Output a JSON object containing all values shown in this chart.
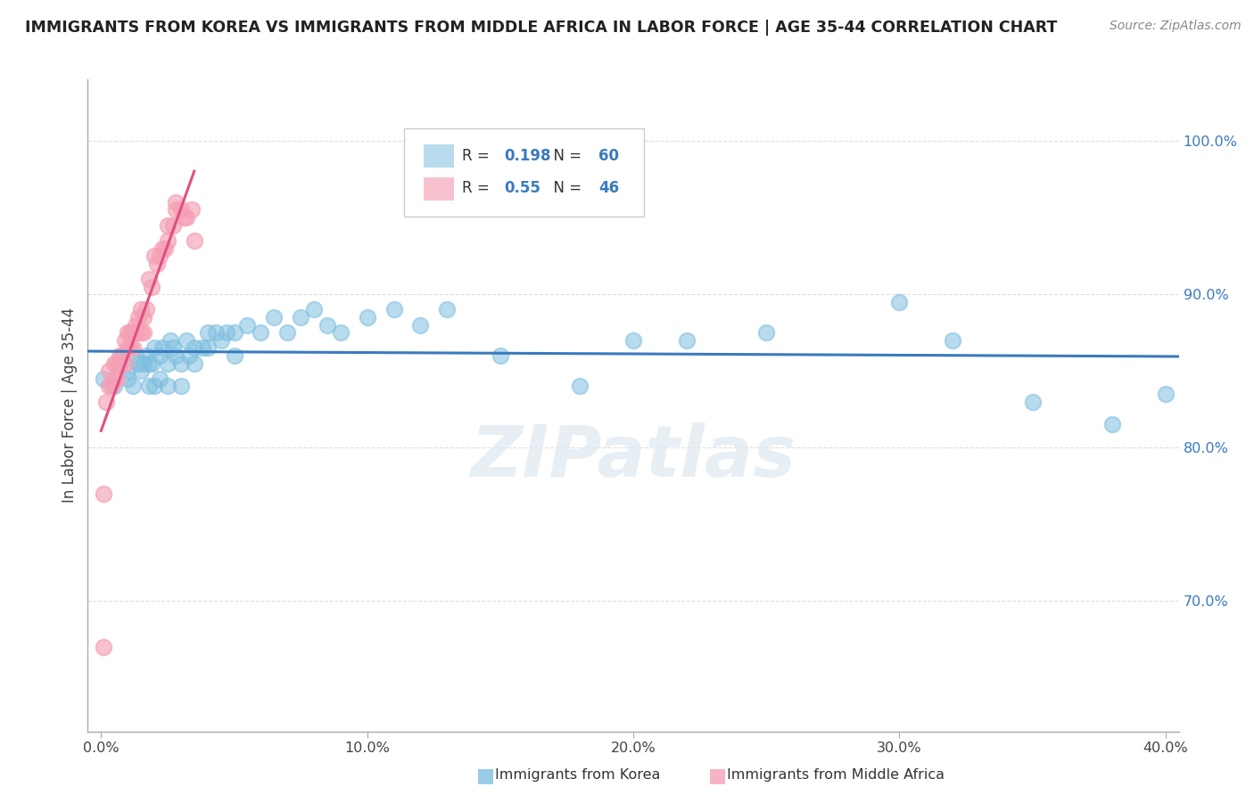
{
  "title": "IMMIGRANTS FROM KOREA VS IMMIGRANTS FROM MIDDLE AFRICA IN LABOR FORCE | AGE 35-44 CORRELATION CHART",
  "source": "Source: ZipAtlas.com",
  "ylabel": "In Labor Force | Age 35-44",
  "xlim": [
    -0.005,
    0.405
  ],
  "ylim": [
    0.615,
    1.04
  ],
  "xticks": [
    0.0,
    0.1,
    0.2,
    0.3,
    0.4
  ],
  "xtick_labels": [
    "0.0%",
    "10.0%",
    "20.0%",
    "30.0%",
    "40.0%"
  ],
  "ytick_labels": [
    "70.0%",
    "80.0%",
    "90.0%",
    "100.0%"
  ],
  "yticks": [
    0.7,
    0.8,
    0.9,
    1.0
  ],
  "korea_R": 0.198,
  "korea_N": 60,
  "africa_R": 0.55,
  "africa_N": 46,
  "korea_color": "#7fbfdf",
  "africa_color": "#f4a0b5",
  "korea_line_color": "#3a7abf",
  "africa_line_color": "#e05080",
  "watermark": "ZIPatlas",
  "korea_scatter_x": [
    0.001,
    0.005,
    0.008,
    0.01,
    0.01,
    0.012,
    0.013,
    0.014,
    0.015,
    0.016,
    0.017,
    0.018,
    0.018,
    0.019,
    0.02,
    0.02,
    0.022,
    0.022,
    0.023,
    0.025,
    0.025,
    0.026,
    0.027,
    0.028,
    0.03,
    0.03,
    0.032,
    0.033,
    0.035,
    0.035,
    0.038,
    0.04,
    0.04,
    0.043,
    0.045,
    0.047,
    0.05,
    0.05,
    0.055,
    0.06,
    0.065,
    0.07,
    0.075,
    0.08,
    0.085,
    0.09,
    0.1,
    0.11,
    0.12,
    0.13,
    0.15,
    0.18,
    0.2,
    0.22,
    0.25,
    0.3,
    0.32,
    0.35,
    0.38,
    0.4
  ],
  "korea_scatter_y": [
    0.845,
    0.84,
    0.86,
    0.845,
    0.85,
    0.84,
    0.86,
    0.855,
    0.85,
    0.855,
    0.86,
    0.855,
    0.84,
    0.855,
    0.865,
    0.84,
    0.86,
    0.845,
    0.865,
    0.855,
    0.84,
    0.87,
    0.865,
    0.86,
    0.855,
    0.84,
    0.87,
    0.86,
    0.865,
    0.855,
    0.865,
    0.875,
    0.865,
    0.875,
    0.87,
    0.875,
    0.875,
    0.86,
    0.88,
    0.875,
    0.885,
    0.875,
    0.885,
    0.89,
    0.88,
    0.875,
    0.885,
    0.89,
    0.88,
    0.89,
    0.86,
    0.84,
    0.87,
    0.87,
    0.875,
    0.895,
    0.87,
    0.83,
    0.815,
    0.835
  ],
  "africa_scatter_x": [
    0.001,
    0.002,
    0.003,
    0.003,
    0.004,
    0.005,
    0.005,
    0.006,
    0.006,
    0.007,
    0.007,
    0.008,
    0.009,
    0.009,
    0.01,
    0.01,
    0.011,
    0.011,
    0.012,
    0.012,
    0.013,
    0.013,
    0.014,
    0.015,
    0.015,
    0.016,
    0.016,
    0.017,
    0.018,
    0.019,
    0.02,
    0.021,
    0.022,
    0.023,
    0.024,
    0.025,
    0.025,
    0.027,
    0.028,
    0.028,
    0.03,
    0.031,
    0.032,
    0.034,
    0.001,
    0.035
  ],
  "africa_scatter_y": [
    0.77,
    0.83,
    0.84,
    0.85,
    0.84,
    0.855,
    0.845,
    0.855,
    0.845,
    0.86,
    0.855,
    0.86,
    0.87,
    0.855,
    0.875,
    0.865,
    0.875,
    0.865,
    0.875,
    0.865,
    0.88,
    0.875,
    0.885,
    0.89,
    0.875,
    0.885,
    0.875,
    0.89,
    0.91,
    0.905,
    0.925,
    0.92,
    0.925,
    0.93,
    0.93,
    0.935,
    0.945,
    0.945,
    0.955,
    0.96,
    0.955,
    0.95,
    0.95,
    0.955,
    0.67,
    0.935
  ]
}
